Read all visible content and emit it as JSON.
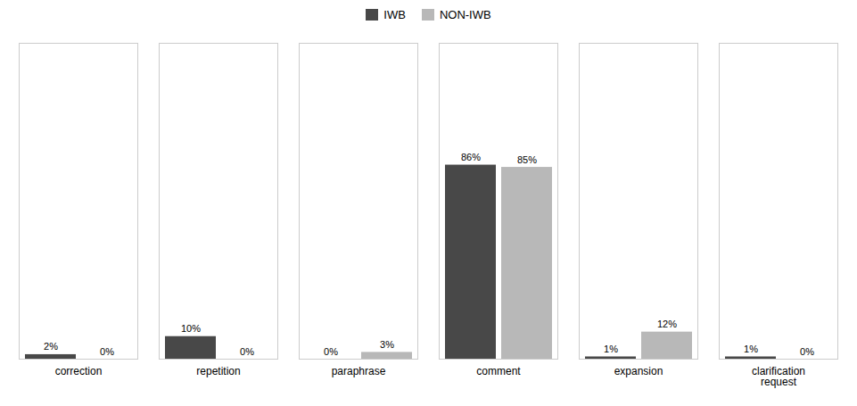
{
  "chart_data": {
    "type": "bar",
    "categories": [
      "correction",
      "repetition",
      "paraphrase",
      "comment",
      "expansion",
      "clarification\nrequest"
    ],
    "series": [
      {
        "name": "IWB",
        "color": "#484848",
        "values": [
          2,
          10,
          0,
          86,
          1,
          1
        ],
        "value_labels": [
          "2%",
          "10%",
          "0%",
          "86%",
          "1%",
          "1%"
        ]
      },
      {
        "name": "NON-IWB",
        "color": "#b8b8b8",
        "values": [
          0,
          0,
          3,
          85,
          12,
          0
        ],
        "value_labels": [
          "0%",
          "0%",
          "3%",
          "85%",
          "12%",
          "0%"
        ]
      }
    ],
    "ylim": [
      0,
      140
    ],
    "grid": false,
    "legend": "top",
    "data_labels": true,
    "tick_labels": "x"
  }
}
